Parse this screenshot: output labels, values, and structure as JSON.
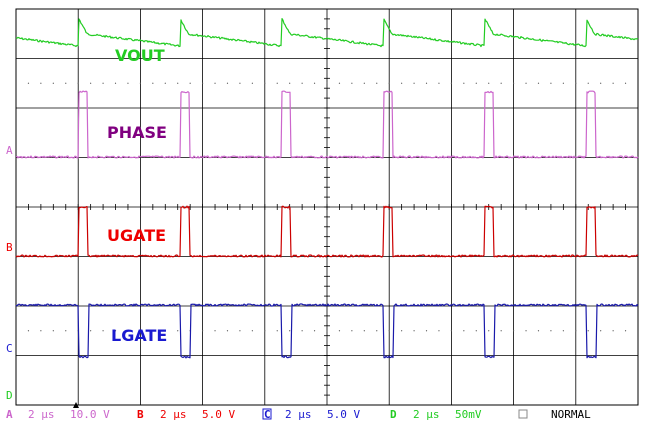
{
  "chart_data": {
    "type": "line",
    "title": "",
    "grid": true,
    "divisions": {
      "x": 10,
      "y": 8
    },
    "traces": [
      {
        "id": "vout",
        "label": "VOUT",
        "color": "#22cc22"
      },
      {
        "id": "phase",
        "label": "PHASE",
        "color": "#cc66cc",
        "label_color": "#800080"
      },
      {
        "id": "ugate",
        "label": "UGATE",
        "color": "#cc0000",
        "label_color": "#ee0000"
      },
      {
        "id": "lgate",
        "label": "LGATE",
        "color": "#1a1aaa",
        "label_color": "#1a1ad0"
      }
    ],
    "channel_markers": [
      "A",
      "B",
      "C",
      "D"
    ],
    "status_bar": [
      {
        "ch": "A",
        "time": "2 µs",
        "volt": "10.0 V",
        "color": "#cc66cc"
      },
      {
        "ch": "B",
        "time": "2 µs",
        "volt": "5.0 V",
        "color": "#ee0000"
      },
      {
        "ch": "C",
        "time": "2 µs",
        "volt": "5.0 V",
        "color": "#1a1ad0"
      },
      {
        "ch": "D",
        "time": "2 µs",
        "volt": "50mV",
        "color": "#22cc22"
      }
    ],
    "mode": "NORMAL"
  }
}
